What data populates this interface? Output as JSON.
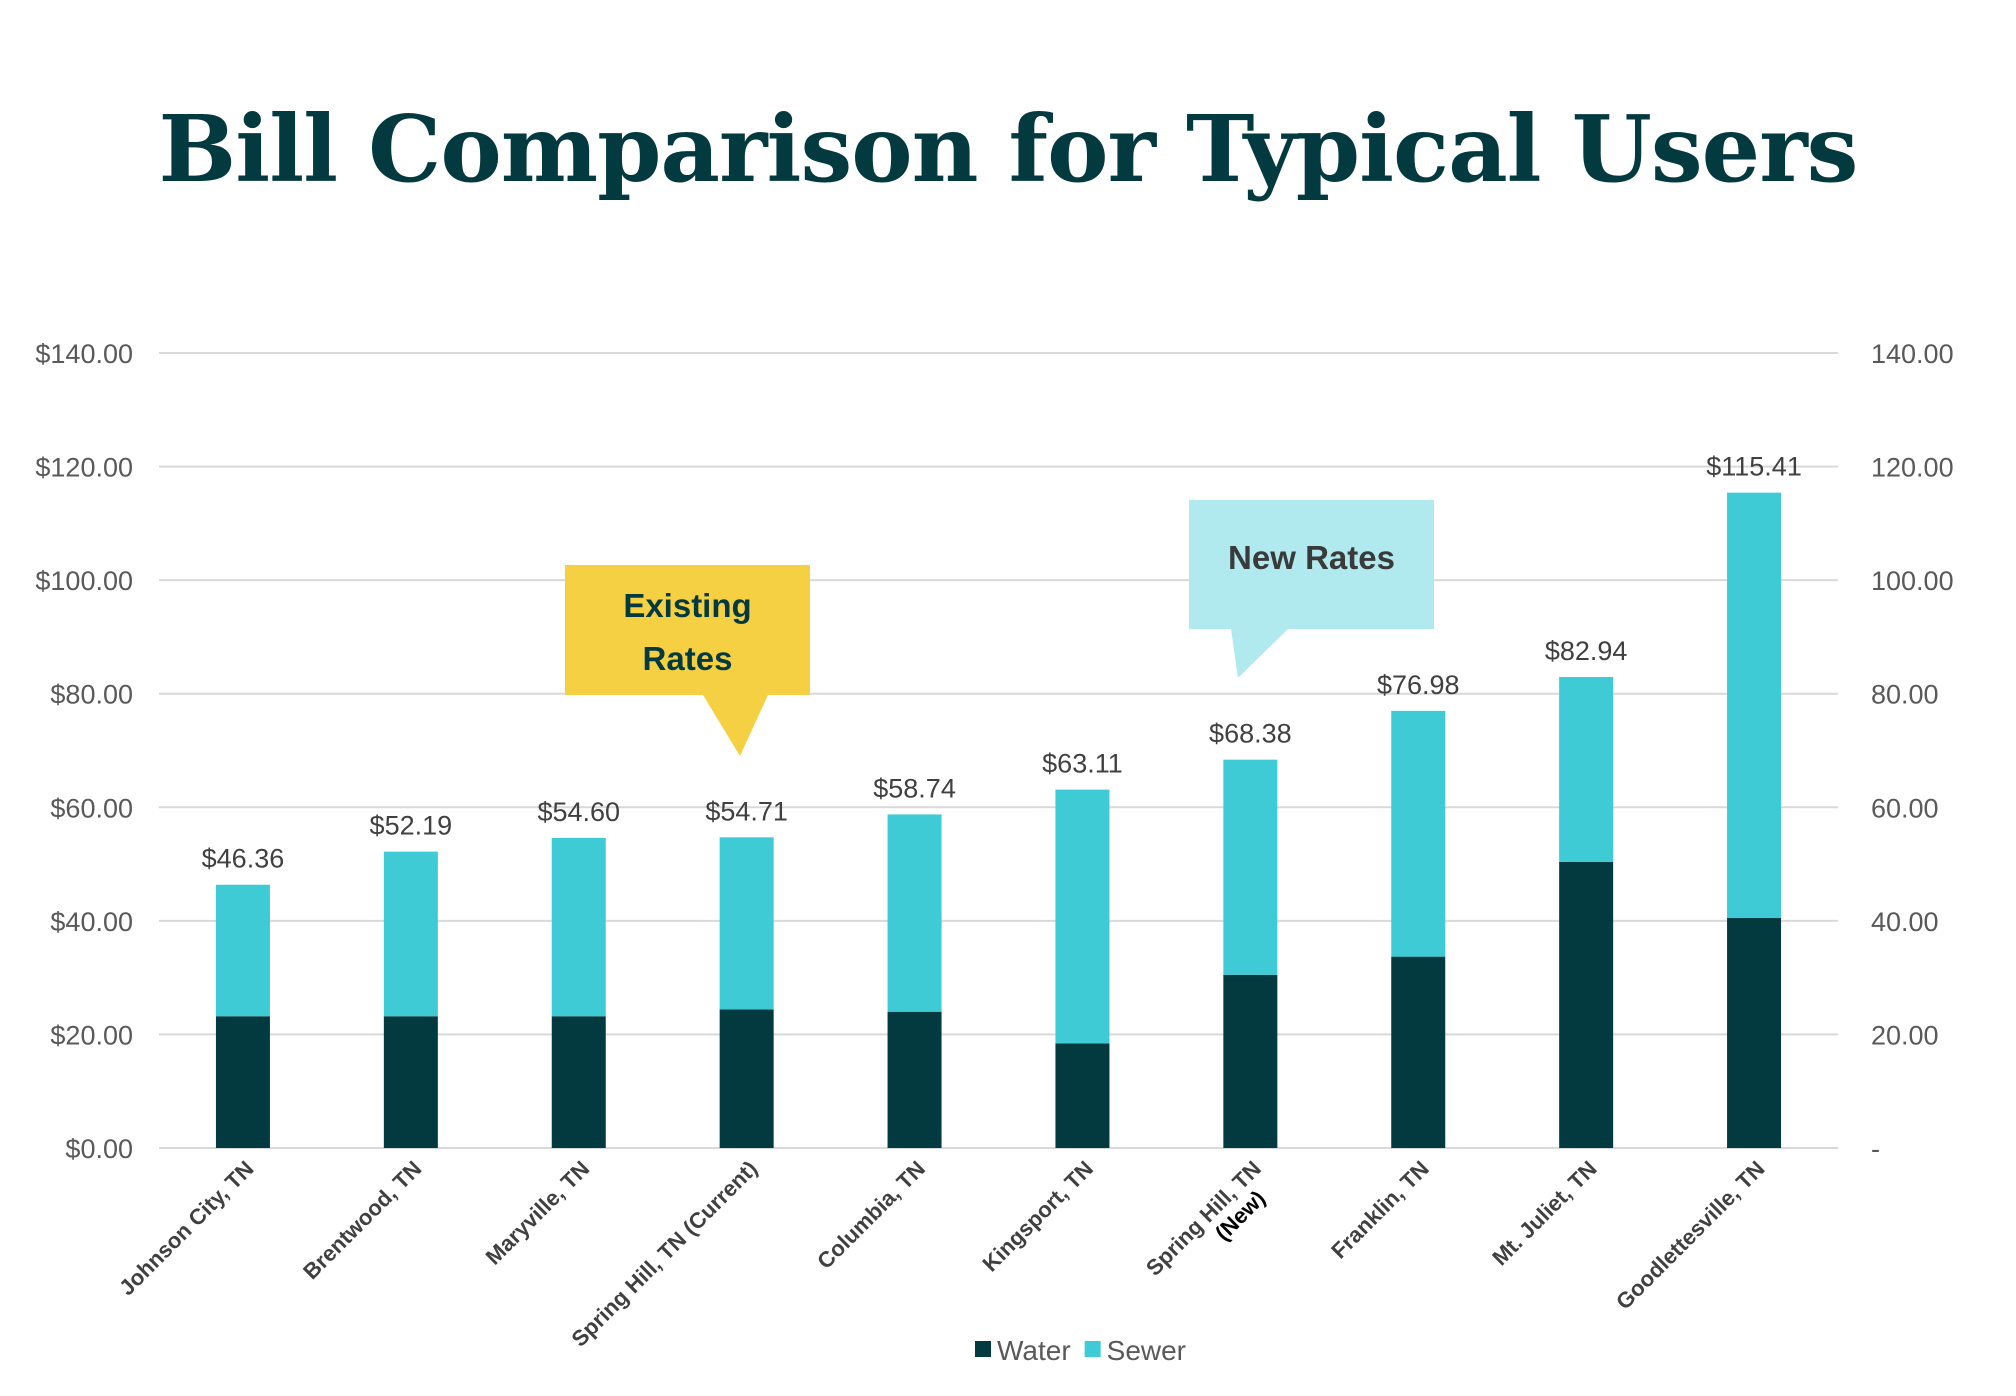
{
  "chart_data": {
    "type": "bar",
    "stacked": true,
    "title": "Bill Comparison for Typical Users",
    "categories": [
      "Johnson City, TN",
      "Brentwood, TN",
      "Maryville, TN",
      "Spring Hill, TN (Current)",
      "Columbia, TN",
      "Kingsport, TN",
      "Spring Hill, TN\n(New)",
      "Franklin, TN",
      "Mt. Juliet, TN",
      "Goodlettesville, TN"
    ],
    "series": [
      {
        "name": "Water",
        "color": "#033a40",
        "values": [
          23.2,
          23.2,
          23.2,
          24.4,
          24.0,
          18.4,
          30.5,
          33.7,
          50.4,
          40.5
        ]
      },
      {
        "name": "Sewer",
        "color": "#3ecbd6",
        "values": [
          23.16,
          28.99,
          31.4,
          30.31,
          34.74,
          44.71,
          37.88,
          43.28,
          32.54,
          74.91
        ]
      }
    ],
    "totals": [
      "$46.36",
      "$52.19",
      "$54.60",
      "$54.71",
      "$58.74",
      "$63.11",
      "$68.38",
      "$76.98",
      "$82.94",
      "$115.41"
    ],
    "ylim": [
      0,
      140
    ],
    "yticks": [
      "$0.00",
      "$20.00",
      "$40.00",
      "$60.00",
      "$80.00",
      "$100.00",
      "$120.00",
      "$140.00"
    ],
    "y2ticks": [
      "-",
      "20.00",
      "40.00",
      "60.00",
      "80.00",
      "100.00",
      "120.00",
      "140.00"
    ],
    "grid": true,
    "legend": "bottom",
    "annotations": [
      {
        "text": "Existing\nRates",
        "color": "#f6d043",
        "text_color": "#033a40",
        "points_to": "Spring Hill, TN (Current)"
      },
      {
        "text": "New Rates",
        "color": "#b0eaee",
        "text_color": "#3a3a3a",
        "points_to": "Spring Hill, TN\n(New)"
      }
    ]
  }
}
